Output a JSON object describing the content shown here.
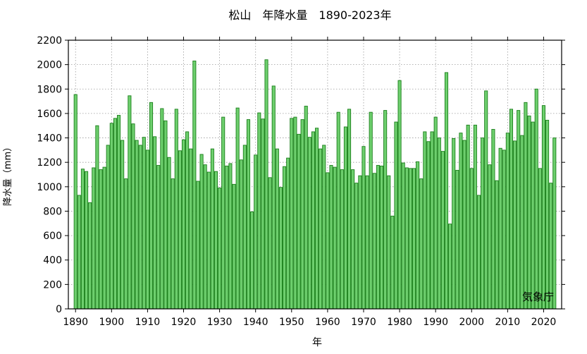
{
  "chart_data": {
    "type": "bar",
    "title": "松山　年降水量　1890-2023年",
    "xlabel": "年",
    "ylabel": "降水量（mm）",
    "source": "気象庁",
    "xlim": [
      1888,
      2025
    ],
    "ylim": [
      0,
      2200
    ],
    "y_ticks": [
      0,
      200,
      400,
      600,
      800,
      1000,
      1200,
      1400,
      1600,
      1800,
      2000,
      2200
    ],
    "x_ticks": [
      1890,
      1900,
      1910,
      1920,
      1930,
      1940,
      1950,
      1960,
      1970,
      1980,
      1990,
      2000,
      2010,
      2020
    ],
    "grid": true,
    "colors": {
      "bar_fill": "#6ecf6e",
      "bar_stroke": "#1b7f1b",
      "grid": "#9a9a9a",
      "axis": "#000000"
    },
    "start_year": 1890,
    "values": [
      1755,
      930,
      1145,
      1125,
      870,
      1155,
      1500,
      1140,
      1160,
      1340,
      1520,
      1560,
      1585,
      1380,
      1065,
      1745,
      1515,
      1380,
      1340,
      1405,
      1300,
      1690,
      1410,
      1175,
      1640,
      1540,
      1240,
      1065,
      1635,
      1295,
      1385,
      1450,
      1310,
      2030,
      1045,
      1265,
      1180,
      1120,
      1310,
      1125,
      990,
      1570,
      1170,
      1190,
      1020,
      1645,
      1220,
      1340,
      1550,
      795,
      1260,
      1605,
      1555,
      2040,
      1075,
      1825,
      1310,
      995,
      1165,
      1235,
      1560,
      1570,
      1430,
      1550,
      1660,
      1405,
      1450,
      1480,
      1310,
      1340,
      1115,
      1175,
      1160,
      1610,
      1140,
      1490,
      1635,
      1140,
      1030,
      1090,
      1330,
      1090,
      1610,
      1110,
      1175,
      1170,
      1625,
      1090,
      760,
      1530,
      1870,
      1195,
      1155,
      1150,
      1150,
      1205,
      1065,
      1450,
      1370,
      1450,
      1570,
      1400,
      1290,
      1935,
      695,
      1395,
      1135,
      1440,
      1380,
      1505,
      1150,
      1505,
      930,
      1400,
      1785,
      1180,
      1470,
      1050,
      1315,
      1300,
      1440,
      1635,
      1375,
      1625,
      1420,
      1690,
      1580,
      1530,
      1800,
      1150,
      1665,
      1545,
      1030,
      1400
    ]
  }
}
